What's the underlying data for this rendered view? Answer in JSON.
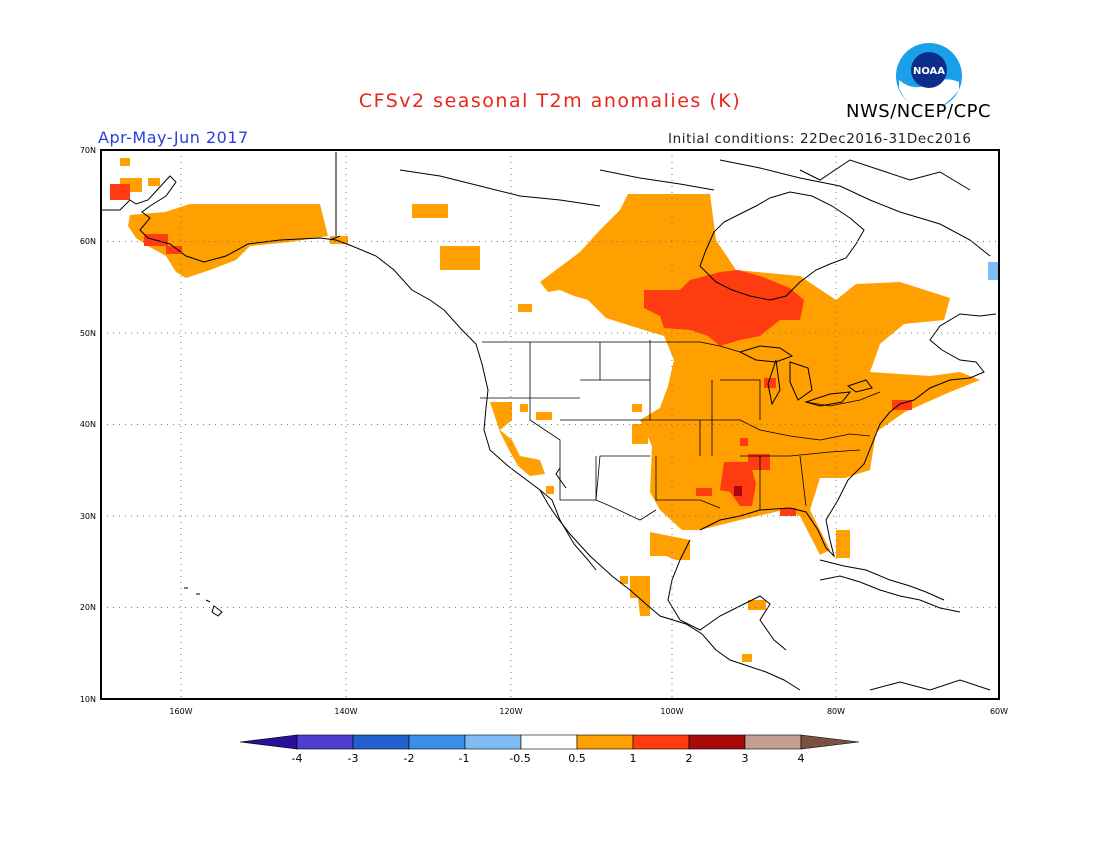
{
  "title": "CFSv2 seasonal T2m anomalies (K)",
  "agency": "NWS/NCEP/CPC",
  "logo_text": "NOAA",
  "season": "Apr-May-Jun 2017",
  "initial_conditions": "Initial conditions: 22Dec2016-31Dec2016",
  "map": {
    "lat_labels": [
      "70N",
      "60N",
      "50N",
      "40N",
      "30N",
      "20N",
      "10N"
    ],
    "lon_labels": [
      "160W",
      "140W",
      "120W",
      "100W",
      "80W",
      "60W"
    ],
    "lon_range": [
      -172,
      -60
    ],
    "lat_range": [
      10,
      70
    ]
  },
  "colorbar": {
    "ticks": [
      "-4",
      "-3",
      "-2",
      "-1",
      "-0.5",
      "0.5",
      "1",
      "2",
      "3",
      "4"
    ],
    "colors": [
      "#2a0f9a",
      "#4f3fcf",
      "#2060d0",
      "#3d8ee6",
      "#80bcf4",
      "#ffffff",
      "#ff9f00",
      "#ff3b10",
      "#a80a0a",
      "#c4a090",
      "#7a5040"
    ]
  },
  "colors": {
    "anomaly_0_5_to_1": "#ff9f00",
    "anomaly_1_to_2": "#ff3b10",
    "anomaly_2_to_3": "#a80a0a",
    "anomaly_neg_0_5_to_neg_1": "#80bcf4"
  }
}
